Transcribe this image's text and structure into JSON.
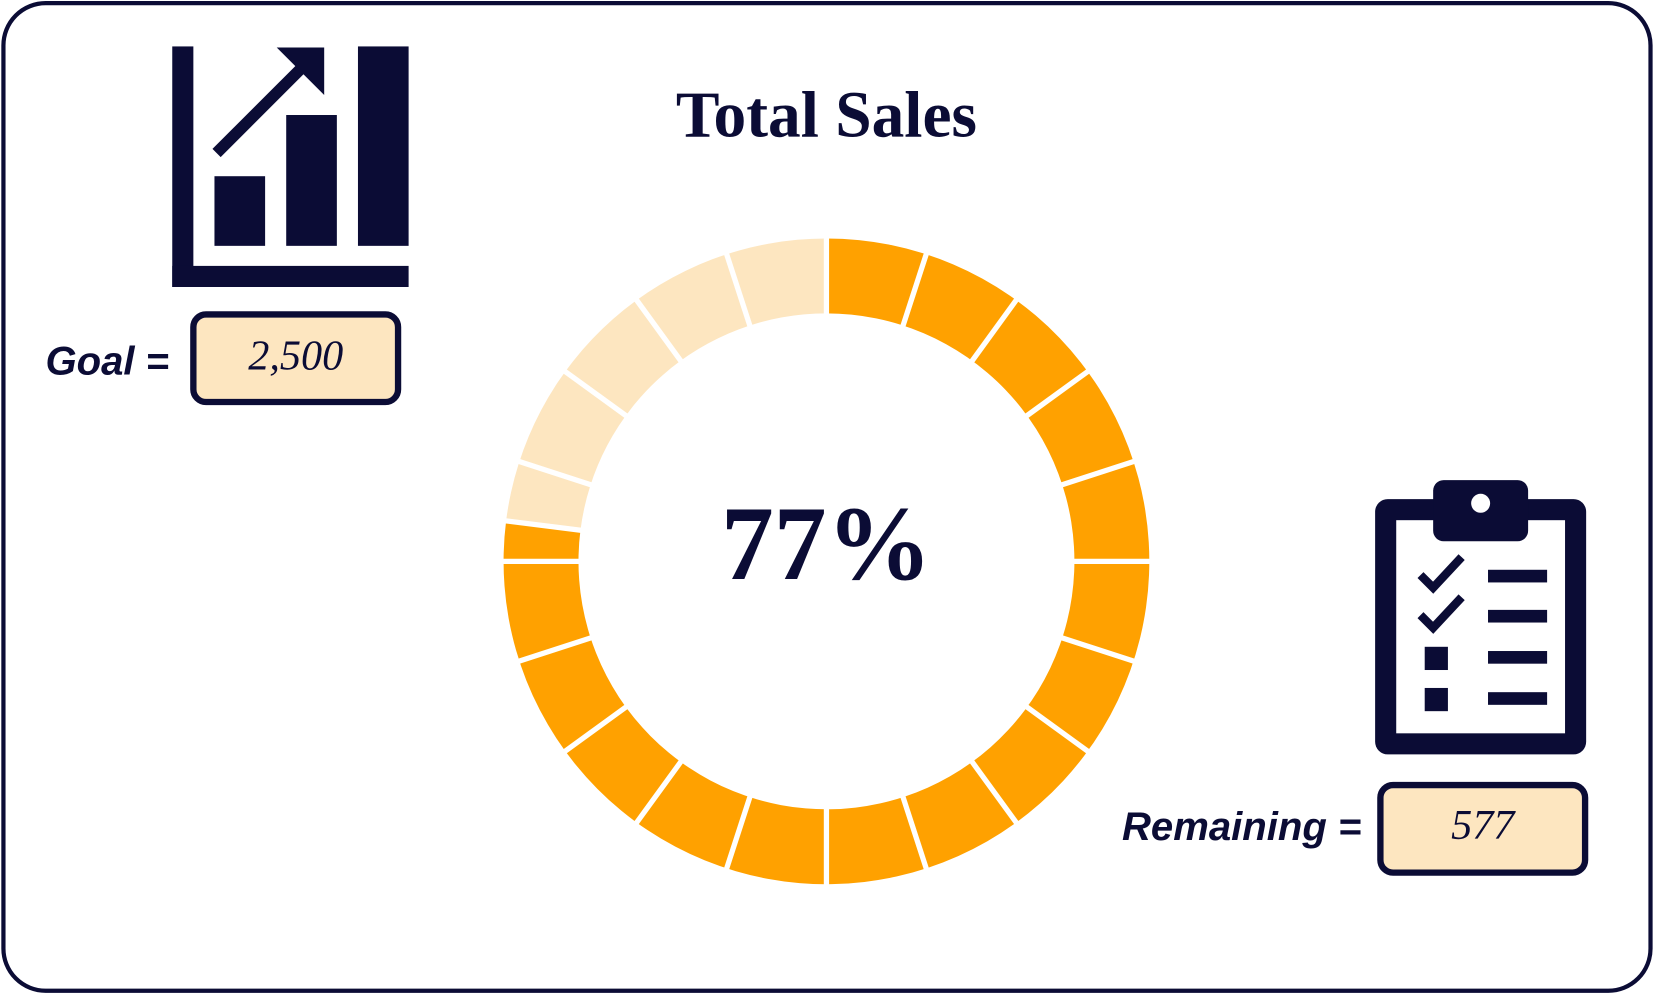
{
  "chart_data": {
    "type": "progress-donut",
    "title": "Total Sales",
    "values": [
      77
    ],
    "value_labels": [
      "77%"
    ],
    "color": "#ffa100",
    "track_color": "#fde6c0"
  },
  "kpis": [
    {
      "label": "Goal =",
      "value": 2500,
      "value_label": "2,500"
    },
    {
      "label": "Remaining =",
      "value": 577
    }
  ]
}
